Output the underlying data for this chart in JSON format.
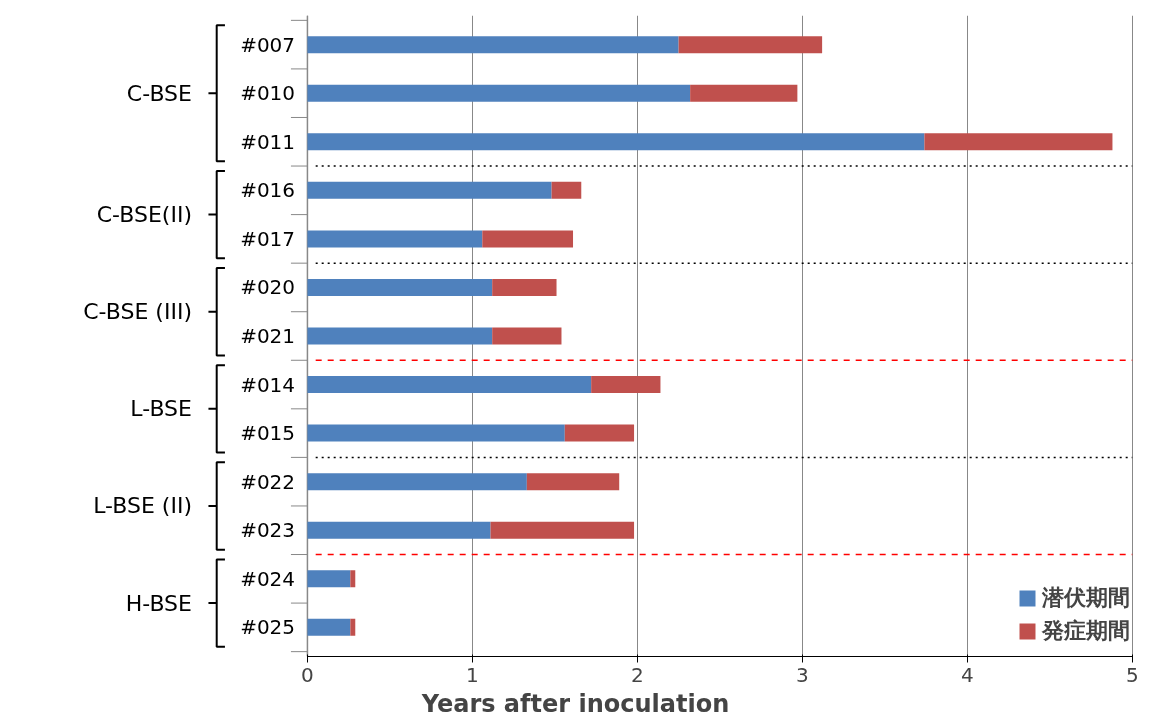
{
  "chart_data": {
    "type": "bar",
    "orientation": "horizontal",
    "stacked": true,
    "categories": [
      "#007",
      "#010",
      "#011",
      "#016",
      "#017",
      "#020",
      "#021",
      "#014",
      "#015",
      "#022",
      "#023",
      "#024",
      "#025"
    ],
    "series": [
      {
        "name": "潜伏期間",
        "color": "#4f81bd",
        "values": [
          2.25,
          2.32,
          3.74,
          1.48,
          1.06,
          1.12,
          1.12,
          1.72,
          1.56,
          1.33,
          1.11,
          0.26,
          0.26
        ]
      },
      {
        "name": "発症期間",
        "color": "#c0504d",
        "values": [
          0.87,
          0.65,
          1.14,
          0.18,
          0.55,
          0.39,
          0.42,
          0.42,
          0.42,
          0.56,
          0.87,
          0.03,
          0.03
        ]
      }
    ],
    "xlim": [
      0,
      5
    ],
    "xticks": [
      0,
      1,
      2,
      3,
      4,
      5
    ],
    "xlabel": "Years after inoculation",
    "grid": "x",
    "legend": "bottom right",
    "annotations": [
      "C-BSE",
      "C-BSE(II)",
      "C-BSE (III)",
      "L-BSE",
      "L-BSE (II)",
      "H-BSE"
    ]
  }
}
